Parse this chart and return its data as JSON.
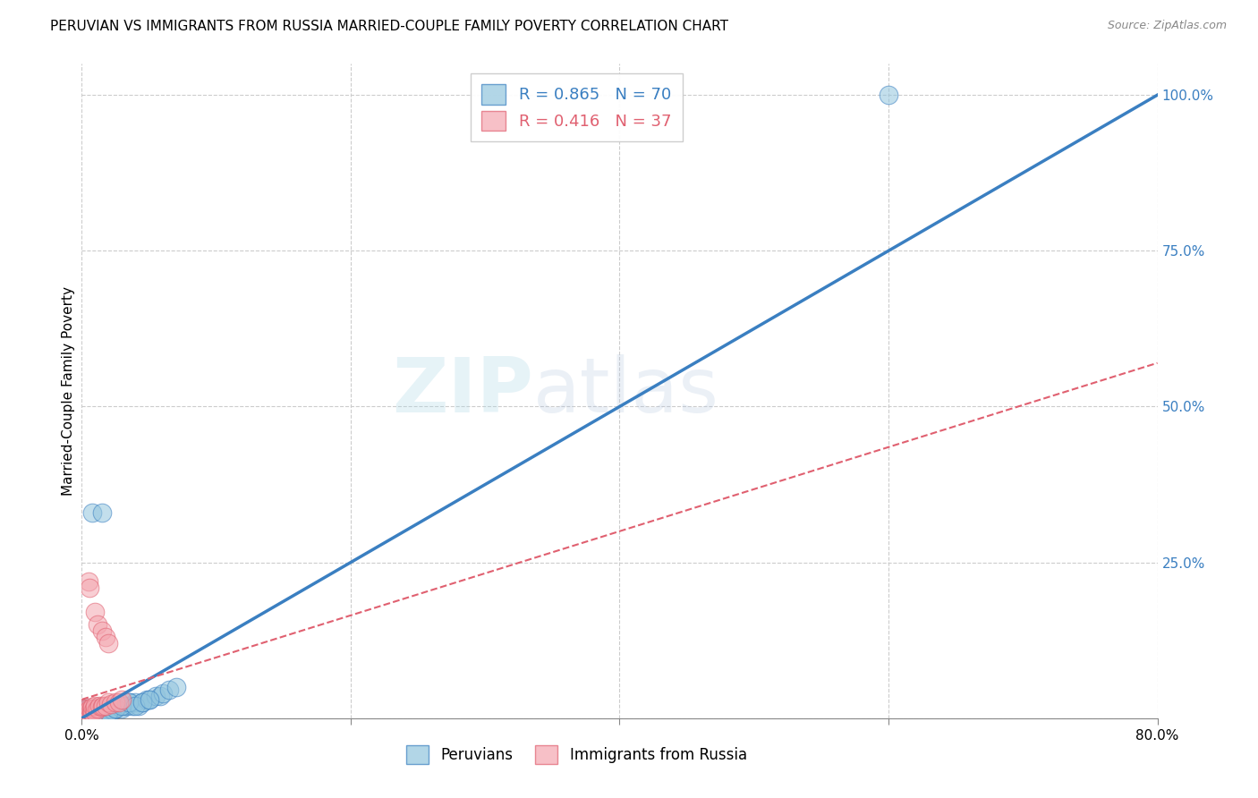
{
  "title": "PERUVIAN VS IMMIGRANTS FROM RUSSIA MARRIED-COUPLE FAMILY POVERTY CORRELATION CHART",
  "source": "Source: ZipAtlas.com",
  "ylabel": "Married-Couple Family Poverty",
  "xlim": [
    0,
    0.8
  ],
  "ylim": [
    0,
    1.05
  ],
  "xticks": [
    0.0,
    0.2,
    0.4,
    0.6,
    0.8
  ],
  "xticklabels": [
    "0.0%",
    "",
    "",
    "",
    "80.0%"
  ],
  "ytick_right": [
    0.0,
    0.25,
    0.5,
    0.75,
    1.0
  ],
  "ytick_right_labels": [
    "",
    "25.0%",
    "50.0%",
    "75.0%",
    "100.0%"
  ],
  "blue_R": 0.865,
  "blue_N": 70,
  "pink_R": 0.416,
  "pink_N": 37,
  "blue_color": "#92c5de",
  "pink_color": "#f4a6b0",
  "blue_line_color": "#3a7fc1",
  "pink_line_color": "#e06070",
  "grid_color": "#cccccc",
  "watermark_zip": "ZIP",
  "watermark_atlas": "atlas",
  "legend_label_blue": "Peruvians",
  "legend_label_pink": "Immigrants from Russia",
  "blue_line_x0": 0.0,
  "blue_line_y0": 0.0,
  "blue_line_x1": 0.8,
  "blue_line_y1": 1.0,
  "pink_line_x0": 0.0,
  "pink_line_y0": 0.03,
  "pink_line_x1": 0.8,
  "pink_line_y1": 0.57,
  "blue_scatter_x": [
    0.001,
    0.001,
    0.002,
    0.002,
    0.002,
    0.003,
    0.003,
    0.003,
    0.003,
    0.004,
    0.004,
    0.004,
    0.005,
    0.005,
    0.005,
    0.005,
    0.006,
    0.006,
    0.006,
    0.007,
    0.007,
    0.007,
    0.008,
    0.008,
    0.009,
    0.009,
    0.01,
    0.01,
    0.01,
    0.011,
    0.012,
    0.012,
    0.013,
    0.014,
    0.015,
    0.015,
    0.016,
    0.017,
    0.018,
    0.019,
    0.02,
    0.022,
    0.023,
    0.025,
    0.027,
    0.03,
    0.032,
    0.034,
    0.036,
    0.038,
    0.04,
    0.042,
    0.045,
    0.048,
    0.05,
    0.055,
    0.058,
    0.06,
    0.065,
    0.07,
    0.008,
    0.015,
    0.02,
    0.025,
    0.03,
    0.035,
    0.04,
    0.045,
    0.05,
    0.6
  ],
  "blue_scatter_y": [
    0.005,
    0.008,
    0.005,
    0.01,
    0.012,
    0.005,
    0.008,
    0.01,
    0.015,
    0.005,
    0.008,
    0.012,
    0.005,
    0.008,
    0.01,
    0.015,
    0.005,
    0.008,
    0.012,
    0.005,
    0.008,
    0.012,
    0.005,
    0.01,
    0.005,
    0.01,
    0.005,
    0.008,
    0.015,
    0.01,
    0.008,
    0.015,
    0.01,
    0.012,
    0.008,
    0.015,
    0.01,
    0.012,
    0.01,
    0.015,
    0.01,
    0.015,
    0.012,
    0.015,
    0.02,
    0.015,
    0.02,
    0.02,
    0.025,
    0.02,
    0.025,
    0.02,
    0.025,
    0.03,
    0.03,
    0.035,
    0.035,
    0.04,
    0.045,
    0.05,
    0.33,
    0.33,
    0.01,
    0.015,
    0.02,
    0.025,
    0.02,
    0.025,
    0.03,
    1.0
  ],
  "pink_scatter_x": [
    0.001,
    0.001,
    0.002,
    0.002,
    0.002,
    0.003,
    0.003,
    0.004,
    0.004,
    0.005,
    0.005,
    0.006,
    0.006,
    0.007,
    0.007,
    0.008,
    0.008,
    0.009,
    0.01,
    0.01,
    0.012,
    0.013,
    0.015,
    0.016,
    0.018,
    0.02,
    0.022,
    0.025,
    0.028,
    0.03,
    0.005,
    0.006,
    0.01,
    0.012,
    0.015,
    0.018,
    0.02
  ],
  "pink_scatter_y": [
    0.005,
    0.008,
    0.005,
    0.01,
    0.015,
    0.005,
    0.01,
    0.008,
    0.015,
    0.008,
    0.012,
    0.008,
    0.015,
    0.01,
    0.015,
    0.01,
    0.018,
    0.015,
    0.01,
    0.02,
    0.015,
    0.02,
    0.018,
    0.02,
    0.02,
    0.025,
    0.022,
    0.025,
    0.025,
    0.03,
    0.22,
    0.21,
    0.17,
    0.15,
    0.14,
    0.13,
    0.12
  ]
}
